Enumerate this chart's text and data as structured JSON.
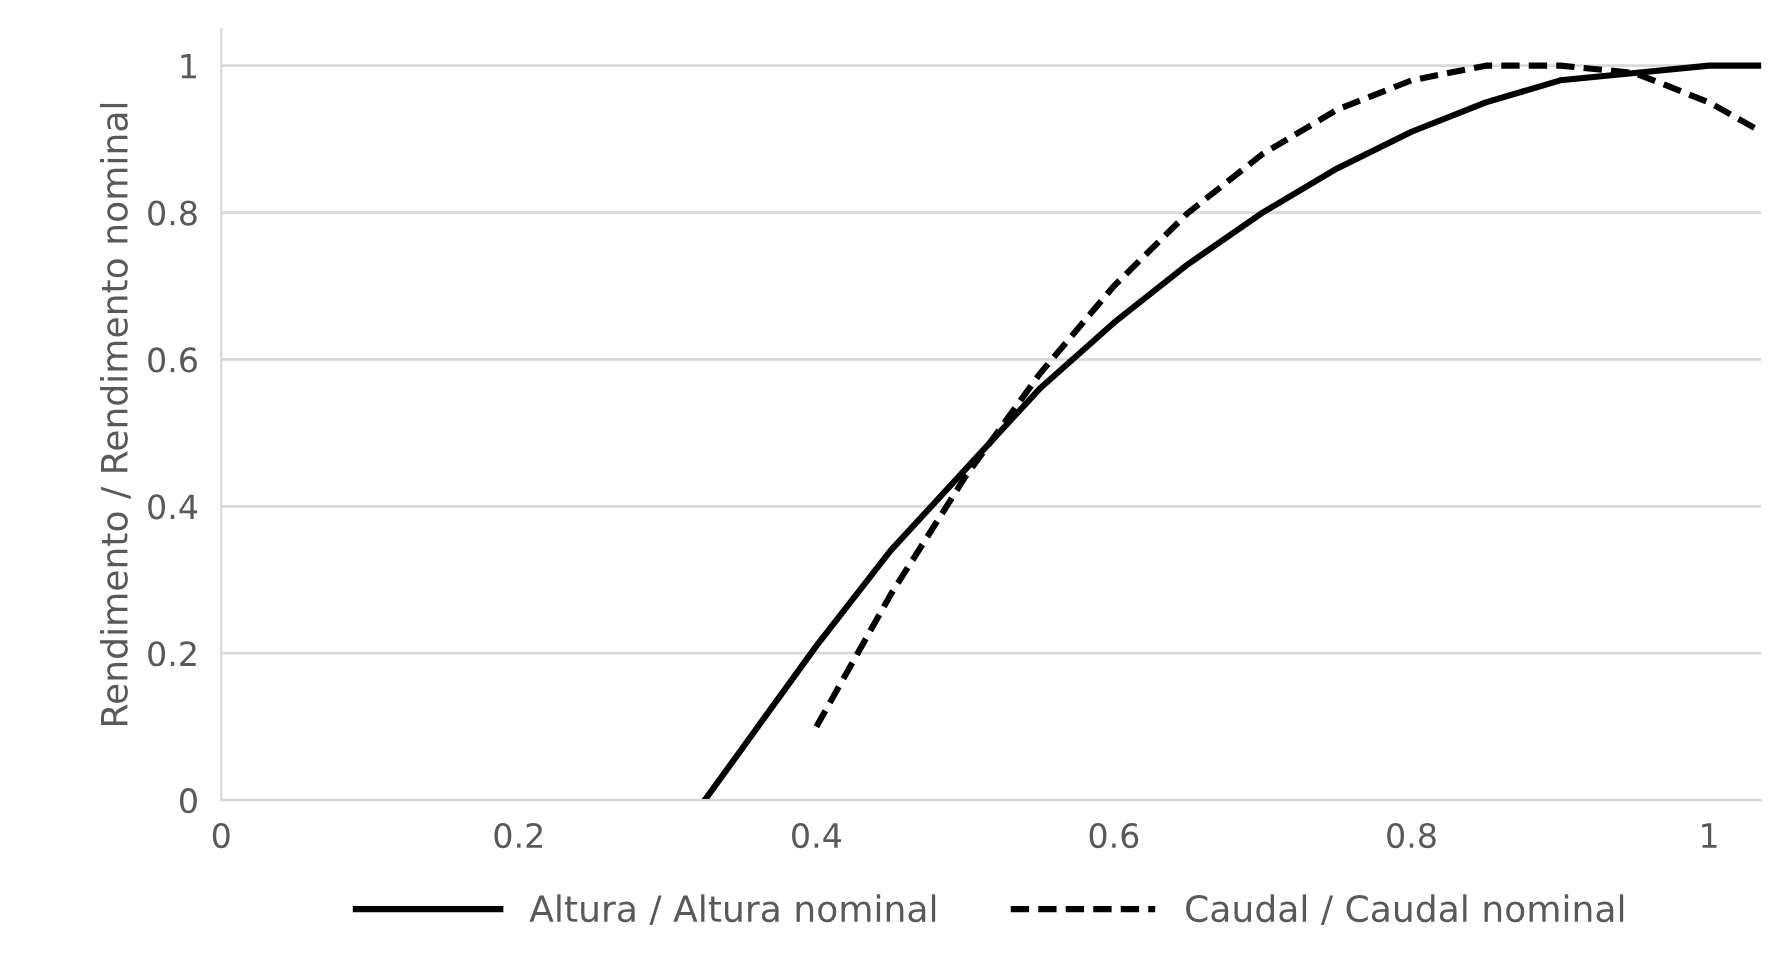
{
  "chart_data": {
    "type": "line",
    "ylabel": "Rendimento / Rendimento nominal",
    "xlim": [
      0,
      1.035
    ],
    "xticks": [
      0,
      0.2,
      0.4,
      0.6,
      0.8,
      1
    ],
    "ylim": [
      0,
      1.05
    ],
    "yticks": [
      0,
      0.2,
      0.4,
      0.6,
      0.8,
      1
    ],
    "grid": "y",
    "legend": "bottom",
    "series": [
      {
        "name": "Altura / Altura nominal",
        "color": "#000000",
        "line_style": "solid",
        "x": [
          0.325,
          0.35,
          0.4,
          0.45,
          0.5,
          0.55,
          0.6,
          0.65,
          0.7,
          0.75,
          0.8,
          0.85,
          0.9,
          0.95,
          1.0,
          1.035
        ],
        "values": [
          0,
          0.07,
          0.21,
          0.34,
          0.45,
          0.56,
          0.65,
          0.73,
          0.8,
          0.86,
          0.91,
          0.95,
          0.98,
          0.99,
          1.0,
          1.0
        ]
      },
      {
        "name": "Caudal / Caudal nominal",
        "color": "#000000",
        "line_style": "dashed",
        "x": [
          0.4,
          0.45,
          0.5,
          0.55,
          0.6,
          0.65,
          0.7,
          0.75,
          0.8,
          0.85,
          0.88,
          0.9,
          0.95,
          1.0,
          1.035
        ],
        "values": [
          0.1,
          0.28,
          0.44,
          0.58,
          0.7,
          0.8,
          0.88,
          0.94,
          0.98,
          1.0,
          1.0,
          1.0,
          0.99,
          0.95,
          0.91
        ]
      }
    ]
  }
}
